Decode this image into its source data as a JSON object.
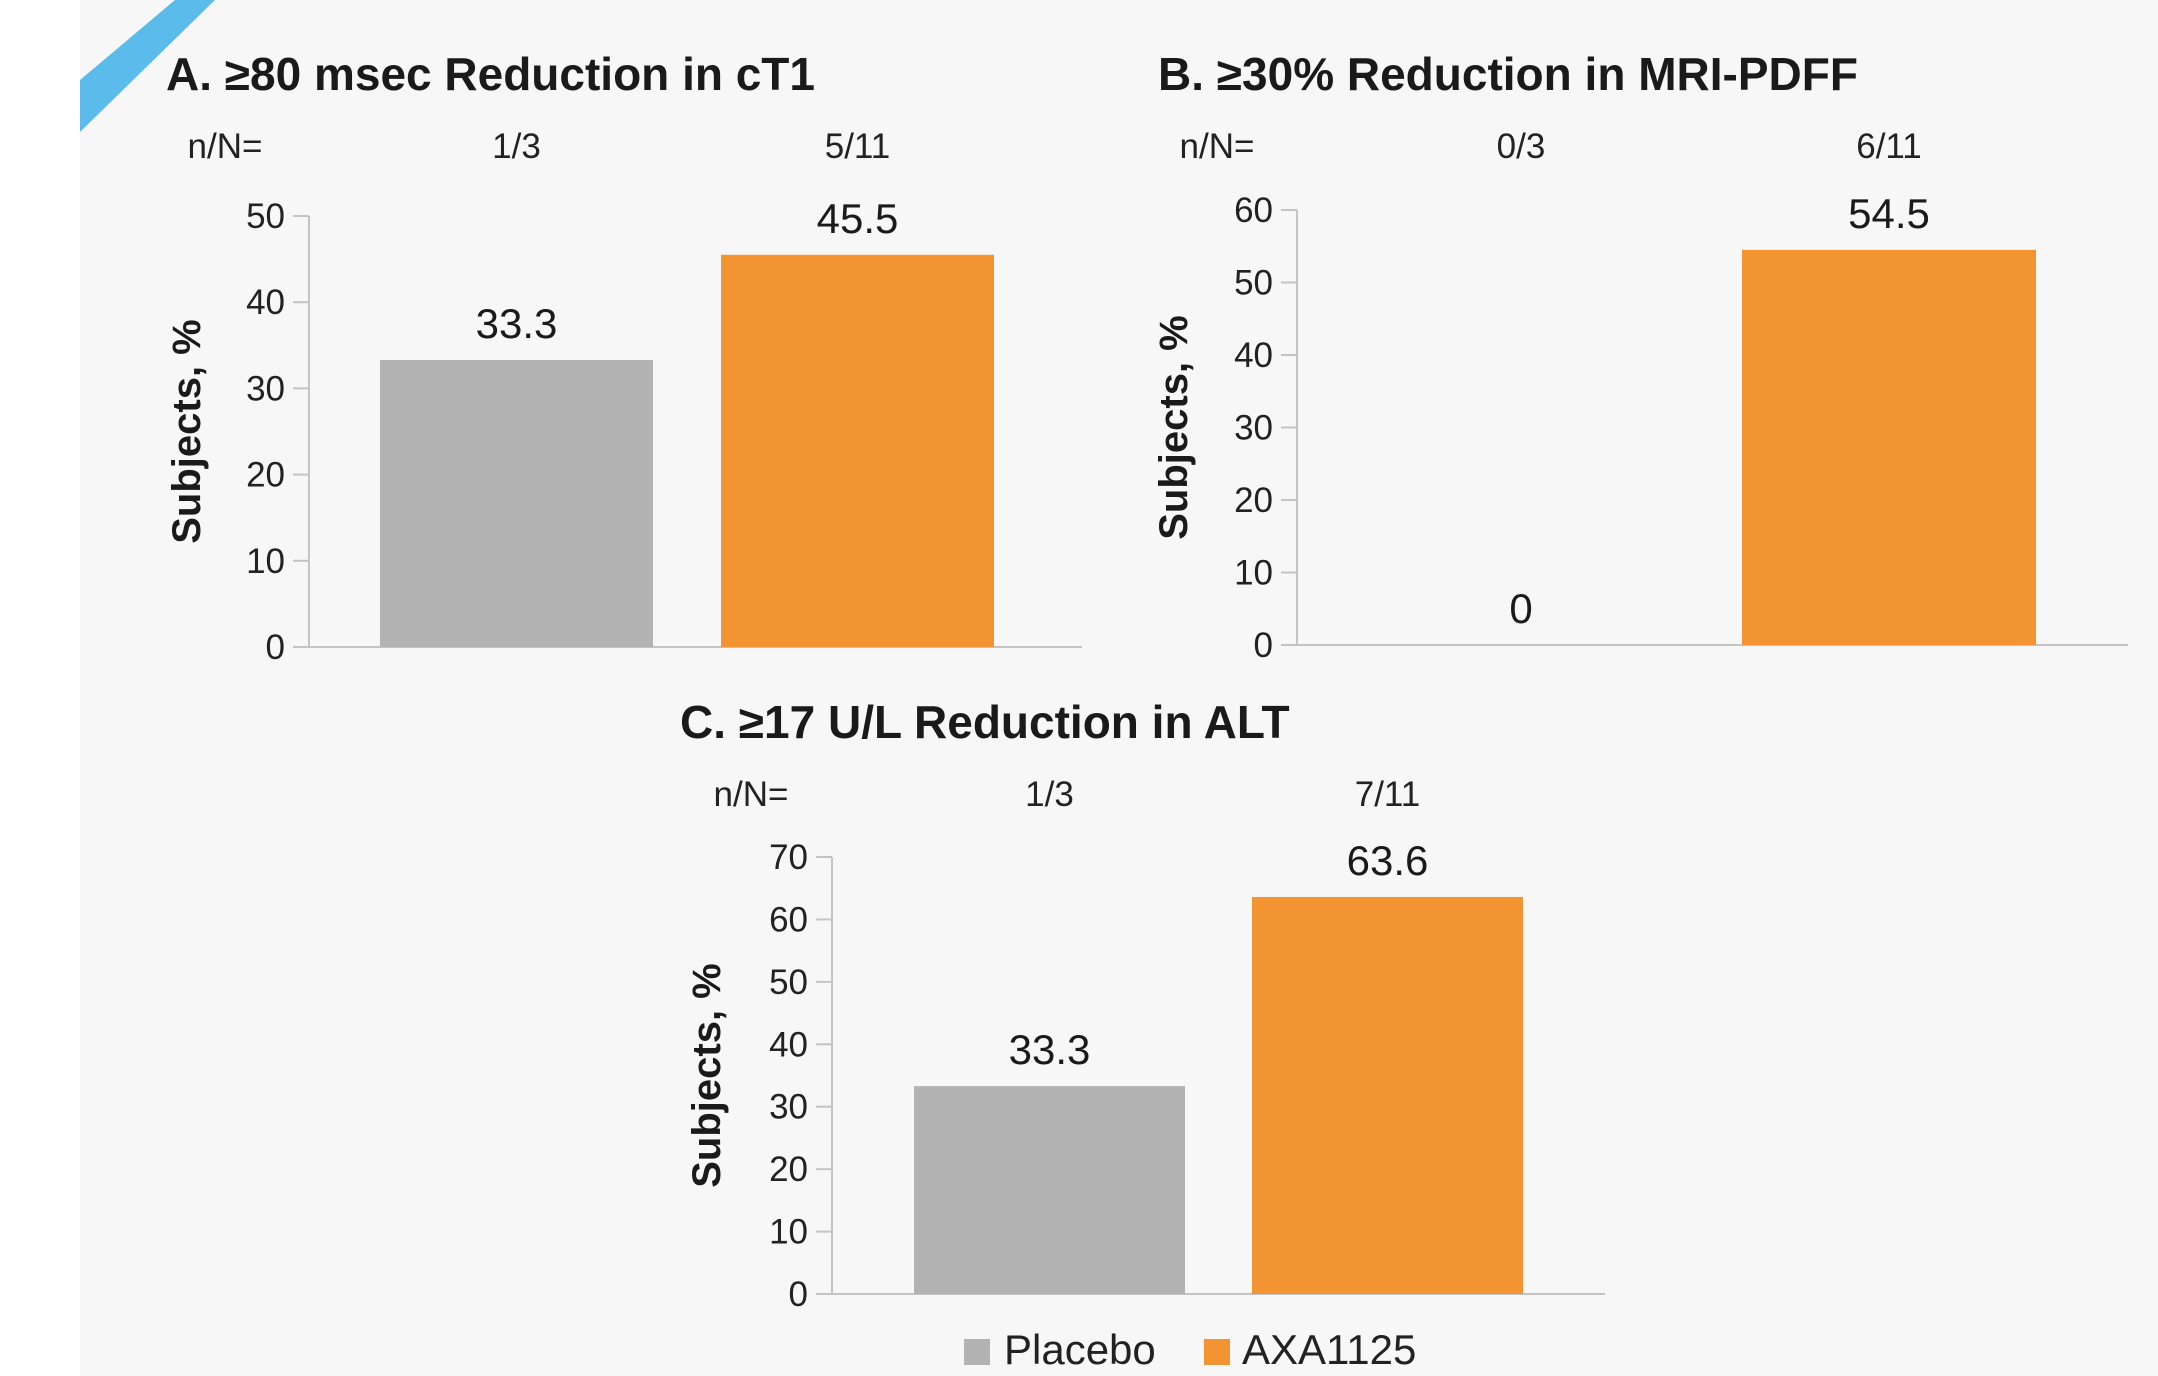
{
  "colors": {
    "placebo": "#b3b3b4",
    "axa1125": "#f39433",
    "background": "#f7f7f7",
    "accent_stripe": "#5bbceb",
    "axis": "#c4c4c4"
  },
  "legend": {
    "placement": "bottom-center",
    "items": [
      {
        "label": "Placebo",
        "color": "#b3b3b4"
      },
      {
        "label": "AXA1125",
        "color": "#f39433"
      }
    ]
  },
  "chart_data": [
    {
      "type": "bar",
      "title": "A. ≥80 msec Reduction in cT1",
      "ylabel": "Subjects, %",
      "ylim": [
        0,
        50
      ],
      "yticks": [
        0,
        10,
        20,
        30,
        40,
        50
      ],
      "n_label": "n/N=",
      "series": [
        {
          "name": "Placebo",
          "n": "1/3",
          "value": 33.3,
          "value_label": "33.3"
        },
        {
          "name": "AXA1125",
          "n": "5/11",
          "value": 45.5,
          "value_label": "45.5"
        }
      ]
    },
    {
      "type": "bar",
      "title": "B. ≥30% Reduction in MRI-PDFF",
      "ylabel": "Subjects, %",
      "ylim": [
        0,
        60
      ],
      "yticks": [
        0,
        10,
        20,
        30,
        40,
        50,
        60
      ],
      "n_label": "n/N=",
      "series": [
        {
          "name": "Placebo",
          "n": "0/3",
          "value": 0,
          "value_label": "0"
        },
        {
          "name": "AXA1125",
          "n": "6/11",
          "value": 54.5,
          "value_label": "54.5"
        }
      ]
    },
    {
      "type": "bar",
      "title": "C. ≥17 U/L Reduction in ALT",
      "ylabel": "Subjects, %",
      "ylim": [
        0,
        70
      ],
      "yticks": [
        0,
        10,
        20,
        30,
        40,
        50,
        60,
        70
      ],
      "n_label": "n/N=",
      "series": [
        {
          "name": "Placebo",
          "n": "1/3",
          "value": 33.3,
          "value_label": "33.3"
        },
        {
          "name": "AXA1125",
          "n": "7/11",
          "value": 63.6,
          "value_label": "63.6"
        }
      ]
    }
  ]
}
